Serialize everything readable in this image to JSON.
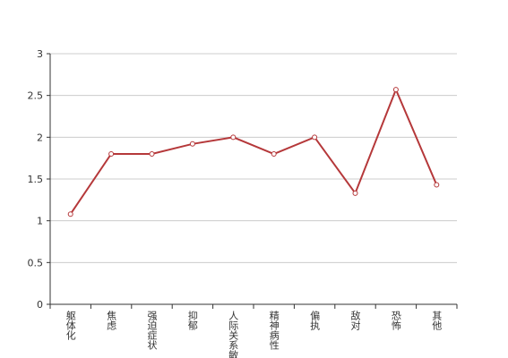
{
  "chart_data": {
    "type": "line",
    "categories": [
      "躯体化",
      "焦虑",
      "强迫症状",
      "抑郁",
      "人际关系敏感",
      "精神病性",
      "偏执",
      "敌对",
      "恐怖",
      "其他"
    ],
    "values": [
      1.08,
      1.8,
      1.8,
      1.92,
      2.0,
      1.8,
      2.0,
      1.33,
      2.57,
      1.43
    ],
    "color": "#b5383a",
    "ylim": [
      0,
      3
    ],
    "yticks": [
      0,
      0.5,
      1,
      1.5,
      2,
      2.5,
      3
    ],
    "grid": true
  }
}
